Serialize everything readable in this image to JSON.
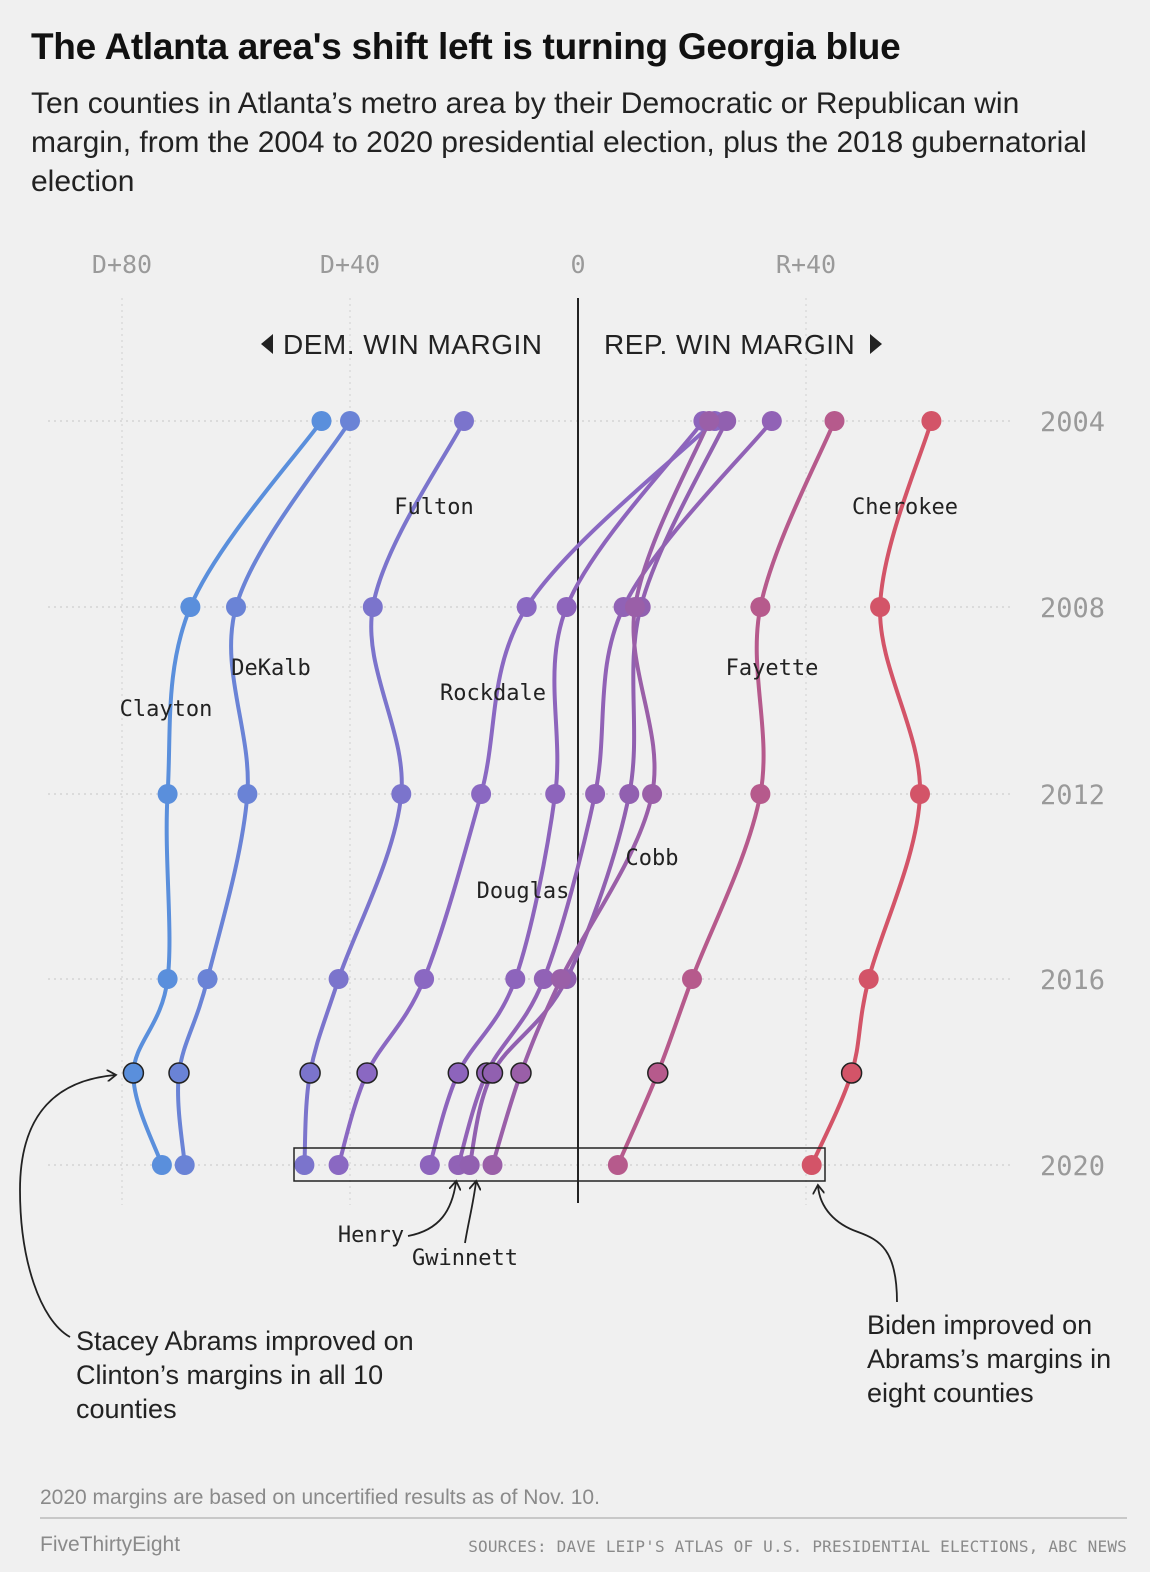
{
  "title": "The Atlanta area's shift left is turning Georgia blue",
  "subtitle": "Ten counties in Atlanta’s metro area by their Democratic or Republican win margin, from the 2004 to 2020 presidential election, plus the 2018 gubernatorial election",
  "footnote": "2020 margins are based on uncertified results as of Nov. 10.",
  "brand": "FiveThirtyEight",
  "sources": "SOURCES: DAVE LEIP'S ATLAS OF U.S. PRESIDENTIAL ELECTIONS, ABC NEWS",
  "annotations": {
    "abrams": "Stacey Abrams improved on Clinton’s margins in all 10 counties",
    "biden": "Biden improved on Abrams’s margins in eight counties"
  },
  "chart_data": {
    "type": "line",
    "x_axis": {
      "range": [
        -80,
        60
      ],
      "ticks": [
        {
          "value": -80,
          "label": "D+80"
        },
        {
          "value": -40,
          "label": "D+40"
        },
        {
          "value": 0,
          "label": "0"
        },
        {
          "value": 40,
          "label": "R+40"
        }
      ],
      "dem_label": "DEM. WIN MARGIN",
      "rep_label": "REP. WIN MARGIN"
    },
    "years": [
      {
        "key": "2004",
        "label": "2004",
        "show_label": true
      },
      {
        "key": "2008",
        "label": "2008",
        "show_label": true
      },
      {
        "key": "2012",
        "label": "2012",
        "show_label": true
      },
      {
        "key": "2016",
        "label": "2016",
        "show_label": true
      },
      {
        "key": "2018",
        "label": "2018",
        "show_label": false
      },
      {
        "key": "2020",
        "label": "2020",
        "show_label": true
      }
    ],
    "grid": true,
    "series": [
      {
        "name": "Clayton",
        "color": "#5a8fdc",
        "values": [
          -45,
          -68,
          -72,
          -72,
          -78,
          -73
        ]
      },
      {
        "name": "DeKalb",
        "color": "#6a83d6",
        "values": [
          -40,
          -60,
          -58,
          -65,
          -70,
          -69
        ]
      },
      {
        "name": "Fulton",
        "color": "#7b74cc",
        "values": [
          -20,
          -36,
          -31,
          -42,
          -47,
          -48
        ]
      },
      {
        "name": "Rockdale",
        "color": "#8a68c2",
        "values": [
          24,
          -9,
          -17,
          -27,
          -37,
          -42
        ]
      },
      {
        "name": "Douglas",
        "color": "#8d64bc",
        "values": [
          22,
          -2,
          -4,
          -11,
          -21,
          -26
        ]
      },
      {
        "name": "Henry",
        "color": "#9162b6",
        "values": [
          34,
          8,
          3,
          -6,
          -16,
          -21
        ]
      },
      {
        "name": "Gwinnett",
        "color": "#9160b0",
        "values": [
          26,
          11,
          9,
          -2,
          -15,
          -19
        ]
      },
      {
        "name": "Cobb",
        "color": "#9a5fa8",
        "values": [
          23,
          10,
          13,
          -3,
          -10,
          -15
        ]
      },
      {
        "name": "Fayette",
        "color": "#b65a8c",
        "values": [
          45,
          32,
          32,
          20,
          14,
          7
        ]
      },
      {
        "name": "Cherokee",
        "color": "#d35468",
        "values": [
          62,
          53,
          60,
          51,
          48,
          41
        ]
      }
    ]
  }
}
